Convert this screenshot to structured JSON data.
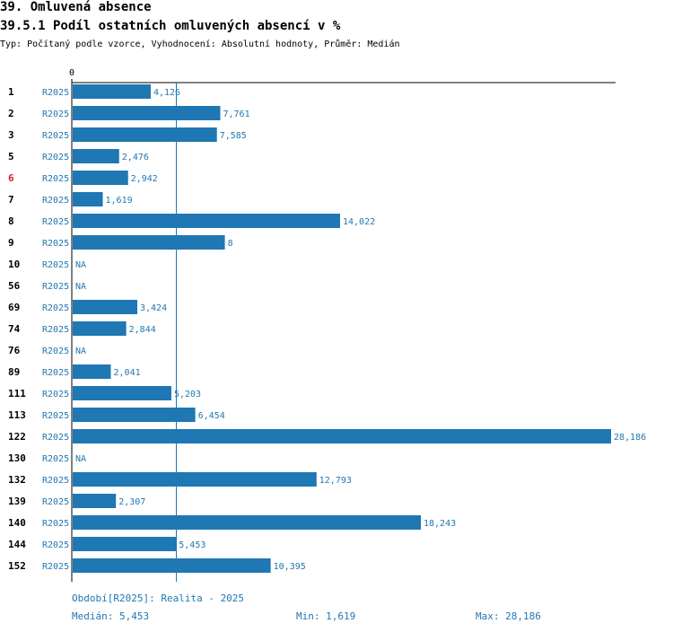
{
  "header": {
    "title": "39. Omluvená absence",
    "subtitle": "39.5.1 Podíl ostatních omluvených absencí v %",
    "type_line": "Typ: Počítaný podle vzorce, Vyhodnocení: Absolutní hodnoty, Průměr: Medián"
  },
  "chart_data": {
    "type": "bar",
    "orientation": "horizontal",
    "series_name": "R2025",
    "x_zero_label": "0",
    "xlim": [
      0,
      28.186
    ],
    "median_line": 5.453,
    "rows": [
      {
        "id": "1",
        "series": "R2025",
        "value": 4.126,
        "label": "4,126",
        "highlight": false
      },
      {
        "id": "2",
        "series": "R2025",
        "value": 7.761,
        "label": "7,761",
        "highlight": false
      },
      {
        "id": "3",
        "series": "R2025",
        "value": 7.585,
        "label": "7,585",
        "highlight": false
      },
      {
        "id": "5",
        "series": "R2025",
        "value": 2.476,
        "label": "2,476",
        "highlight": false
      },
      {
        "id": "6",
        "series": "R2025",
        "value": 2.942,
        "label": "2,942",
        "highlight": true
      },
      {
        "id": "7",
        "series": "R2025",
        "value": 1.619,
        "label": "1,619",
        "highlight": false
      },
      {
        "id": "8",
        "series": "R2025",
        "value": 14.022,
        "label": "14,022",
        "highlight": false
      },
      {
        "id": "9",
        "series": "R2025",
        "value": 8,
        "label": "8",
        "highlight": false
      },
      {
        "id": "10",
        "series": "R2025",
        "value": null,
        "label": "NA",
        "highlight": false
      },
      {
        "id": "56",
        "series": "R2025",
        "value": null,
        "label": "NA",
        "highlight": false
      },
      {
        "id": "69",
        "series": "R2025",
        "value": 3.424,
        "label": "3,424",
        "highlight": false
      },
      {
        "id": "74",
        "series": "R2025",
        "value": 2.844,
        "label": "2,844",
        "highlight": false
      },
      {
        "id": "76",
        "series": "R2025",
        "value": null,
        "label": "NA",
        "highlight": false
      },
      {
        "id": "89",
        "series": "R2025",
        "value": 2.041,
        "label": "2,041",
        "highlight": false
      },
      {
        "id": "111",
        "series": "R2025",
        "value": 5.203,
        "label": "5,203",
        "highlight": false
      },
      {
        "id": "113",
        "series": "R2025",
        "value": 6.454,
        "label": "6,454",
        "highlight": false
      },
      {
        "id": "122",
        "series": "R2025",
        "value": 28.186,
        "label": "28,186",
        "highlight": false
      },
      {
        "id": "130",
        "series": "R2025",
        "value": null,
        "label": "NA",
        "highlight": false
      },
      {
        "id": "132",
        "series": "R2025",
        "value": 12.793,
        "label": "12,793",
        "highlight": false
      },
      {
        "id": "139",
        "series": "R2025",
        "value": 2.307,
        "label": "2,307",
        "highlight": false
      },
      {
        "id": "140",
        "series": "R2025",
        "value": 18.243,
        "label": "18,243",
        "highlight": false
      },
      {
        "id": "144",
        "series": "R2025",
        "value": 5.453,
        "label": "5,453",
        "highlight": false
      },
      {
        "id": "152",
        "series": "R2025",
        "value": 10.395,
        "label": "10,395",
        "highlight": false
      }
    ]
  },
  "footer": {
    "period": "Období[R2025]: Realita - 2025",
    "median": "Medián: 5,453",
    "min": "Min: 1,619",
    "max": "Max: 28,186"
  },
  "colors": {
    "bar": "#1f77b4",
    "text_blue": "#1f77b4",
    "highlight": "#e41a1c",
    "axis": "#000000"
  }
}
